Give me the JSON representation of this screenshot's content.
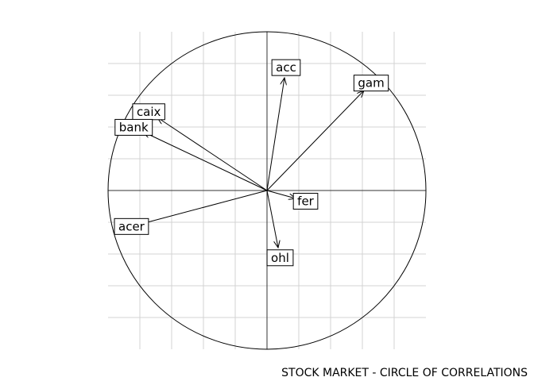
{
  "chart_data": {
    "type": "scatter",
    "subtype": "circle-of-correlations",
    "title": "STOCK MARKET - CIRCLE OF CORRELATIONS",
    "xlim": [
      -1,
      1
    ],
    "ylim": [
      -1,
      1
    ],
    "grid": true,
    "grid_step": 0.2,
    "vectors": [
      {
        "name": "acc",
        "x": 0.11,
        "y": 0.71
      },
      {
        "name": "gam",
        "x": 0.61,
        "y": 0.63
      },
      {
        "name": "caix",
        "x": -0.69,
        "y": 0.46
      },
      {
        "name": "bank",
        "x": -0.78,
        "y": 0.37
      },
      {
        "name": "fer",
        "x": 0.18,
        "y": -0.05
      },
      {
        "name": "acer",
        "x": -0.79,
        "y": -0.21
      },
      {
        "name": "ohl",
        "x": 0.07,
        "y": -0.36
      }
    ]
  }
}
